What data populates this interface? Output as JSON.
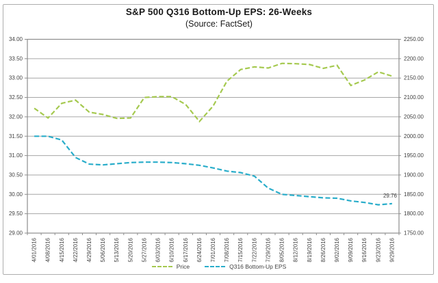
{
  "header": {
    "title": "S&P 500 Q316 Bottom-Up EPS: 26-Weeks",
    "subtitle": "(Source: FactSet)"
  },
  "colors": {
    "price_line": "#a5c94f",
    "eps_line": "#29adca",
    "gridline": "#a6a6a6",
    "plot_border": "#8c8c8c",
    "axis_text": "#3f3f3f",
    "frame_border": "#adadad",
    "background": "#ffffff"
  },
  "chart_data": {
    "type": "line",
    "title": "S&P 500 Q316 Bottom-Up EPS: 26-Weeks",
    "subtitle": "(Source: FactSet)",
    "grid": true,
    "legend_position": "bottom",
    "categories": [
      "4/01/2016",
      "4/08/2016",
      "4/15/2016",
      "4/22/2016",
      "4/29/2016",
      "5/06/2016",
      "5/13/2016",
      "5/20/2016",
      "5/27/2016",
      "6/03/2016",
      "6/10/2016",
      "6/17/2016",
      "6/24/2016",
      "7/01/2016",
      "7/08/2016",
      "7/15/2016",
      "7/22/2016",
      "7/29/2016",
      "8/05/2016",
      "8/12/2016",
      "8/19/2016",
      "8/26/2016",
      "9/02/2016",
      "9/09/2016",
      "9/16/2016",
      "9/23/2016",
      "9/29/2016"
    ],
    "left_axis": {
      "min": 29,
      "max": 34,
      "step": 0.5,
      "ticks": [
        "34.00",
        "33.50",
        "33.00",
        "32.50",
        "32.00",
        "31.50",
        "31.00",
        "30.50",
        "30.00",
        "29.50",
        "29.00"
      ]
    },
    "right_axis": {
      "min": 1750,
      "max": 2250,
      "step": 50,
      "ticks": [
        "2250.00",
        "2200.00",
        "2150.00",
        "2100.00",
        "2050.00",
        "2000.00",
        "1950.00",
        "1900.00",
        "1850.00",
        "1800.00",
        "1750.00"
      ]
    },
    "series": [
      {
        "name": "Price",
        "axis": "right",
        "color": "#a5c94f",
        "dashed": true,
        "values": [
          2072,
          2047,
          2085,
          2093,
          2062,
          2056,
          2046,
          2047,
          2100,
          2102,
          2102,
          2082,
          2038,
          2078,
          2142,
          2172,
          2179,
          2176,
          2188,
          2187,
          2185,
          2175,
          2183,
          2131,
          2145,
          2166,
          2155
        ]
      },
      {
        "name": "Q316 Bottom-Up EPS",
        "axis": "left",
        "color": "#29adca",
        "dashed": true,
        "values": [
          31.5,
          31.5,
          31.4,
          30.95,
          30.78,
          30.76,
          30.79,
          30.82,
          30.83,
          30.83,
          30.82,
          30.79,
          30.75,
          30.68,
          30.6,
          30.56,
          30.47,
          30.16,
          30.0,
          29.97,
          29.94,
          29.91,
          29.9,
          29.83,
          29.79,
          29.73,
          29.76
        ]
      }
    ],
    "annotation": {
      "text": "29.76",
      "series": "Q316 Bottom-Up EPS",
      "index": 26,
      "value": 29.76
    }
  }
}
